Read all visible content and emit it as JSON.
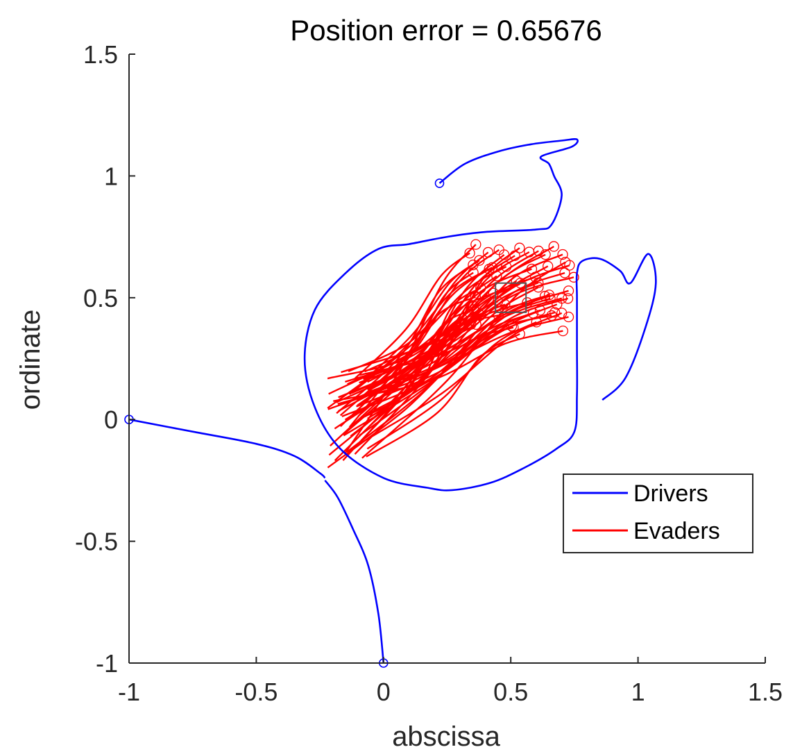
{
  "chart_data": {
    "type": "line",
    "title": "Position error = 0.65676",
    "xlabel": "abscissa",
    "ylabel": "ordinate",
    "xlim": [
      -1,
      1.5
    ],
    "ylim": [
      -1,
      1.5
    ],
    "xticks": [
      -1,
      -0.5,
      0,
      0.5,
      1,
      1.5
    ],
    "xtick_labels": [
      "-1",
      "-0.5",
      "0",
      "0.5",
      "1",
      "1.5"
    ],
    "yticks": [
      -1,
      -0.5,
      0,
      0.5,
      1,
      1.5
    ],
    "ytick_labels": [
      "-1",
      "-0.5",
      "0",
      "0.5",
      "1",
      "1.5"
    ],
    "grid": false,
    "legend": {
      "placement": "right",
      "entries": [
        "Drivers",
        "Evaders"
      ]
    },
    "colors": {
      "drivers": "#0000ff",
      "evaders": "#ff0000",
      "target": "#555555"
    },
    "target_box": {
      "x": [
        0.44,
        0.56
      ],
      "y": [
        0.44,
        0.56
      ]
    },
    "series": [
      {
        "name": "Drivers",
        "paths": [
          [
            [
              -1.0,
              0.0
            ],
            [
              -0.75,
              -0.05
            ],
            [
              -0.5,
              -0.1
            ],
            [
              -0.35,
              -0.15
            ],
            [
              -0.25,
              -0.22
            ],
            [
              -0.23,
              -0.24
            ]
          ],
          [
            [
              0.0,
              -1.0
            ],
            [
              -0.02,
              -0.8
            ],
            [
              -0.06,
              -0.6
            ],
            [
              -0.12,
              -0.45
            ],
            [
              -0.18,
              -0.32
            ],
            [
              -0.23,
              -0.25
            ]
          ],
          [
            [
              0.22,
              0.97
            ],
            [
              0.32,
              1.05
            ],
            [
              0.45,
              1.1
            ],
            [
              0.58,
              1.13
            ],
            [
              0.7,
              1.145
            ],
            [
              0.76,
              1.15
            ],
            [
              0.74,
              1.12
            ],
            [
              0.62,
              1.08
            ],
            [
              0.65,
              1.05
            ],
            [
              0.67,
              1.0
            ],
            [
              0.7,
              0.92
            ],
            [
              0.66,
              0.8
            ],
            [
              0.6,
              0.78
            ],
            [
              0.4,
              0.77
            ],
            [
              0.25,
              0.75
            ],
            [
              0.1,
              0.72
            ],
            [
              -0.02,
              0.7
            ],
            [
              -0.15,
              0.6
            ],
            [
              -0.27,
              0.45
            ],
            [
              -0.31,
              0.25
            ],
            [
              -0.27,
              0.05
            ],
            [
              -0.17,
              -0.12
            ],
            [
              0.0,
              -0.24
            ],
            [
              0.17,
              -0.28
            ],
            [
              0.27,
              -0.29
            ],
            [
              0.42,
              -0.26
            ],
            [
              0.55,
              -0.2
            ],
            [
              0.68,
              -0.12
            ],
            [
              0.75,
              -0.05
            ],
            [
              0.76,
              0.1
            ],
            [
              0.76,
              0.3
            ],
            [
              0.76,
              0.5
            ],
            [
              0.76,
              0.6
            ],
            [
              0.78,
              0.65
            ],
            [
              0.85,
              0.66
            ],
            [
              0.93,
              0.61
            ],
            [
              0.97,
              0.56
            ],
            [
              1.04,
              0.68
            ],
            [
              1.07,
              0.56
            ],
            [
              1.03,
              0.38
            ],
            [
              0.95,
              0.17
            ],
            [
              0.86,
              0.08
            ]
          ]
        ]
      },
      {
        "name": "Evaders",
        "count": 60,
        "start_region": {
          "x": [
            -0.22,
            -0.05
          ],
          "y": [
            -0.2,
            0.2
          ]
        },
        "end_region": {
          "x": [
            0.33,
            0.75
          ],
          "y": [
            0.35,
            0.72
          ]
        }
      }
    ]
  }
}
